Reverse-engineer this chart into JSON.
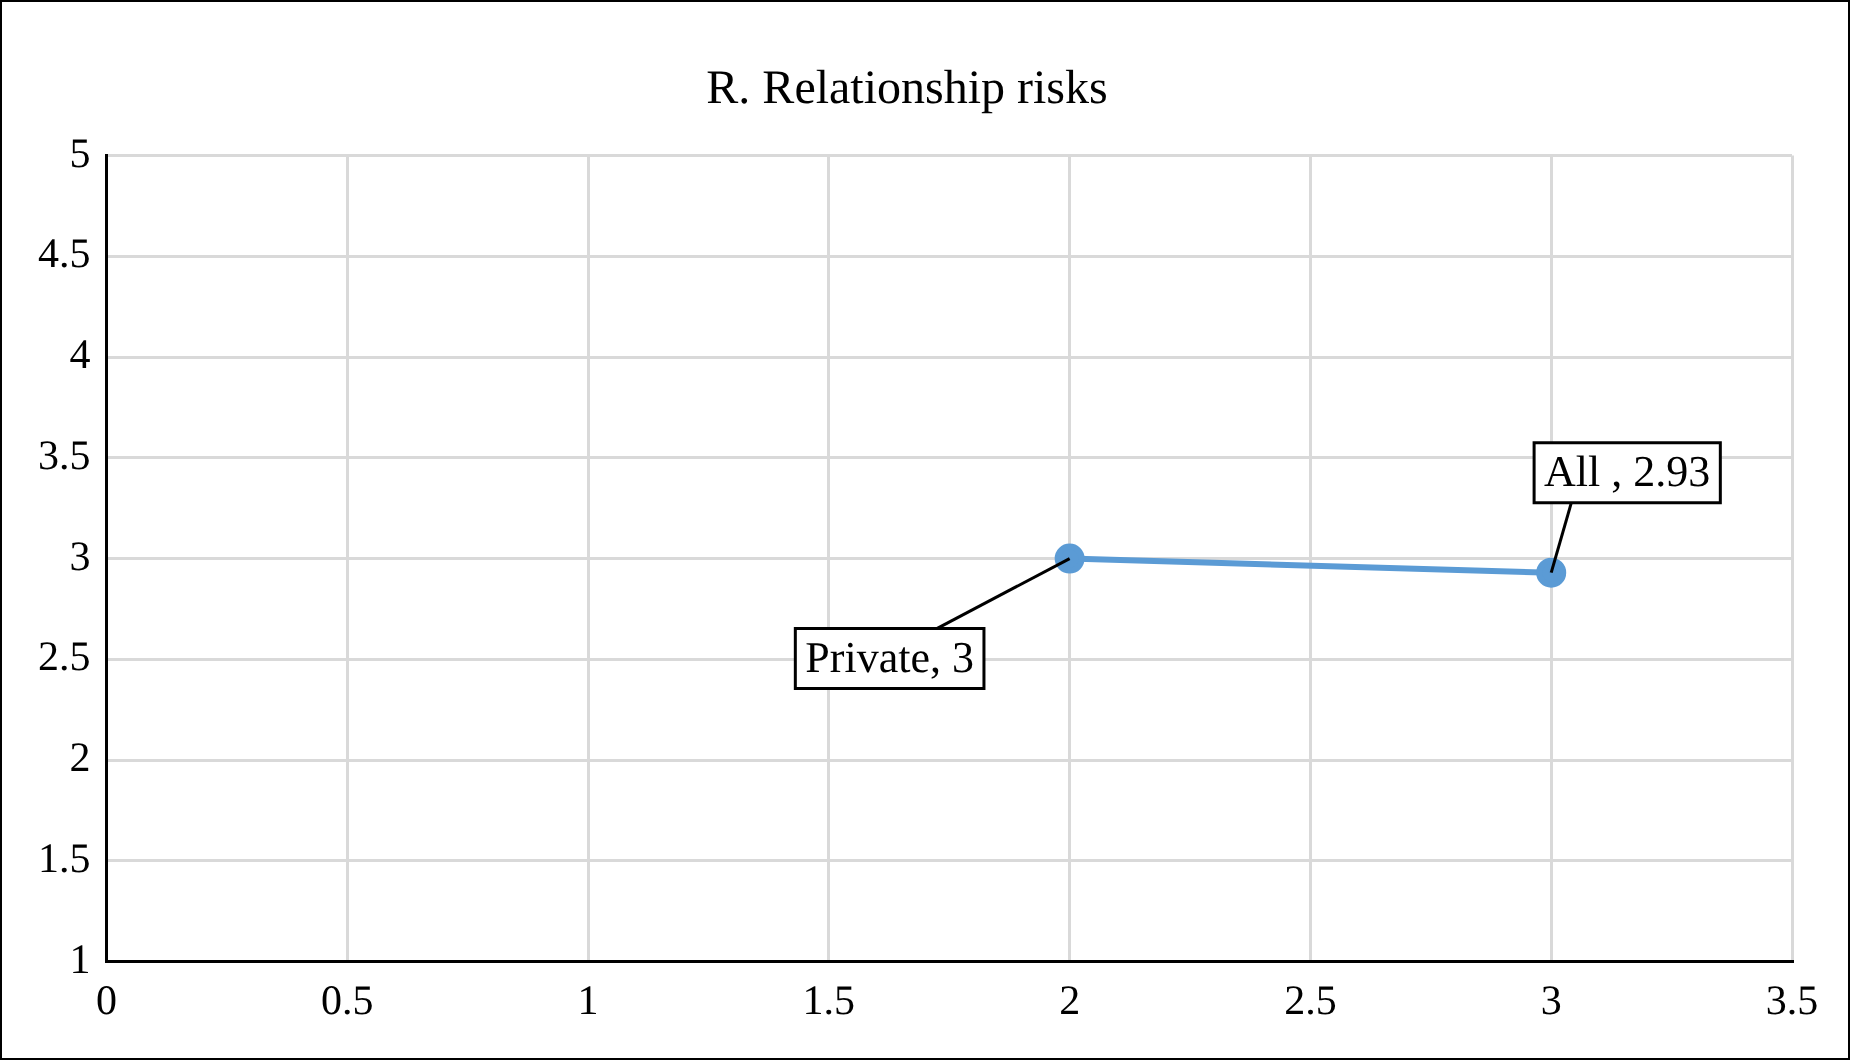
{
  "chart_data": {
    "type": "line",
    "title": "R. Relationship risks",
    "x": [
      2,
      3
    ],
    "series": [
      {
        "color": "#5b9bd5",
        "values": [
          3,
          2.93
        ]
      }
    ],
    "annotations": [
      {
        "text": "Private, 3",
        "x": 2,
        "y": 3
      },
      {
        "text": "All , 2.93",
        "x": 3,
        "y": 2.93
      }
    ],
    "xlim": [
      0,
      3.5
    ],
    "xticks": [
      0,
      0.5,
      1,
      1.5,
      2,
      2.5,
      3,
      3.5
    ],
    "ylim": [
      1,
      5
    ],
    "yticks": [
      1,
      1.5,
      2,
      2.5,
      3,
      3.5,
      4,
      4.5,
      5
    ],
    "grid": true,
    "marker": "circle",
    "line_style": "solid",
    "legend": false
  }
}
